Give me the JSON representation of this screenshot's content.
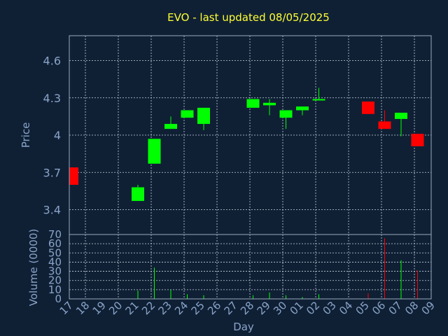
{
  "chart_data": {
    "type": "candlestick",
    "title": "EVO - last updated 08/05/2025",
    "ylabel": "Price",
    "volume_label": "Volume (0000)",
    "xlabel": "Day",
    "price_ticks": [
      "3.4",
      "3.7",
      "4",
      "4.3",
      "4.6"
    ],
    "price_tick_values": [
      3.4,
      3.7,
      4.0,
      4.3,
      4.6
    ],
    "price_range": [
      3.2,
      4.8
    ],
    "volume_ticks": [
      "0",
      "10",
      "20",
      "30",
      "40",
      "50",
      "60",
      "70"
    ],
    "volume_tick_values": [
      0,
      10,
      20,
      30,
      40,
      50,
      60,
      70
    ],
    "volume_range": [
      0,
      70
    ],
    "x_labels": [
      "17",
      "18",
      "19",
      "20",
      "21",
      "22",
      "23",
      "24",
      "25",
      "26",
      "27",
      "28",
      "29",
      "30",
      "01",
      "02",
      "03",
      "04",
      "05",
      "06",
      "07",
      "08",
      "09"
    ],
    "grid": true,
    "up_color": "#00ff00",
    "down_color": "#ff0000",
    "candles": [
      {
        "x": "17",
        "open": 3.74,
        "high": 3.74,
        "low": 3.6,
        "close": 3.6,
        "volume": 0
      },
      {
        "x": "21",
        "open": 3.47,
        "high": 3.6,
        "low": 3.47,
        "close": 3.58,
        "volume": 9
      },
      {
        "x": "22",
        "open": 3.77,
        "high": 3.97,
        "low": 3.77,
        "close": 3.97,
        "volume": 34
      },
      {
        "x": "23",
        "open": 4.05,
        "high": 4.15,
        "low": 4.05,
        "close": 4.09,
        "volume": 10
      },
      {
        "x": "24",
        "open": 4.14,
        "high": 4.2,
        "low": 4.14,
        "close": 4.2,
        "volume": 5
      },
      {
        "x": "25",
        "open": 4.09,
        "high": 4.22,
        "low": 4.04,
        "close": 4.22,
        "volume": 4
      },
      {
        "x": "28",
        "open": 4.22,
        "high": 4.29,
        "low": 4.22,
        "close": 4.29,
        "volume": 4
      },
      {
        "x": "29",
        "open": 4.24,
        "high": 4.29,
        "low": 4.16,
        "close": 4.26,
        "volume": 7
      },
      {
        "x": "30",
        "open": 4.14,
        "high": 4.2,
        "low": 4.05,
        "close": 4.2,
        "volume": 4
      },
      {
        "x": "01",
        "open": 4.2,
        "high": 4.23,
        "low": 4.16,
        "close": 4.23,
        "volume": 2
      },
      {
        "x": "02",
        "open": 4.28,
        "high": 4.38,
        "low": 4.28,
        "close": 4.29,
        "volume": 5
      },
      {
        "x": "05",
        "open": 4.27,
        "high": 4.27,
        "low": 4.17,
        "close": 4.17,
        "volume": 6
      },
      {
        "x": "06",
        "open": 4.11,
        "high": 4.2,
        "low": 4.05,
        "close": 4.05,
        "volume": 66
      },
      {
        "x": "07",
        "open": 4.13,
        "high": 4.18,
        "low": 3.99,
        "close": 4.18,
        "volume": 42
      },
      {
        "x": "08",
        "open": 4.01,
        "high": 4.01,
        "low": 3.91,
        "close": 3.91,
        "volume": 31
      }
    ]
  }
}
